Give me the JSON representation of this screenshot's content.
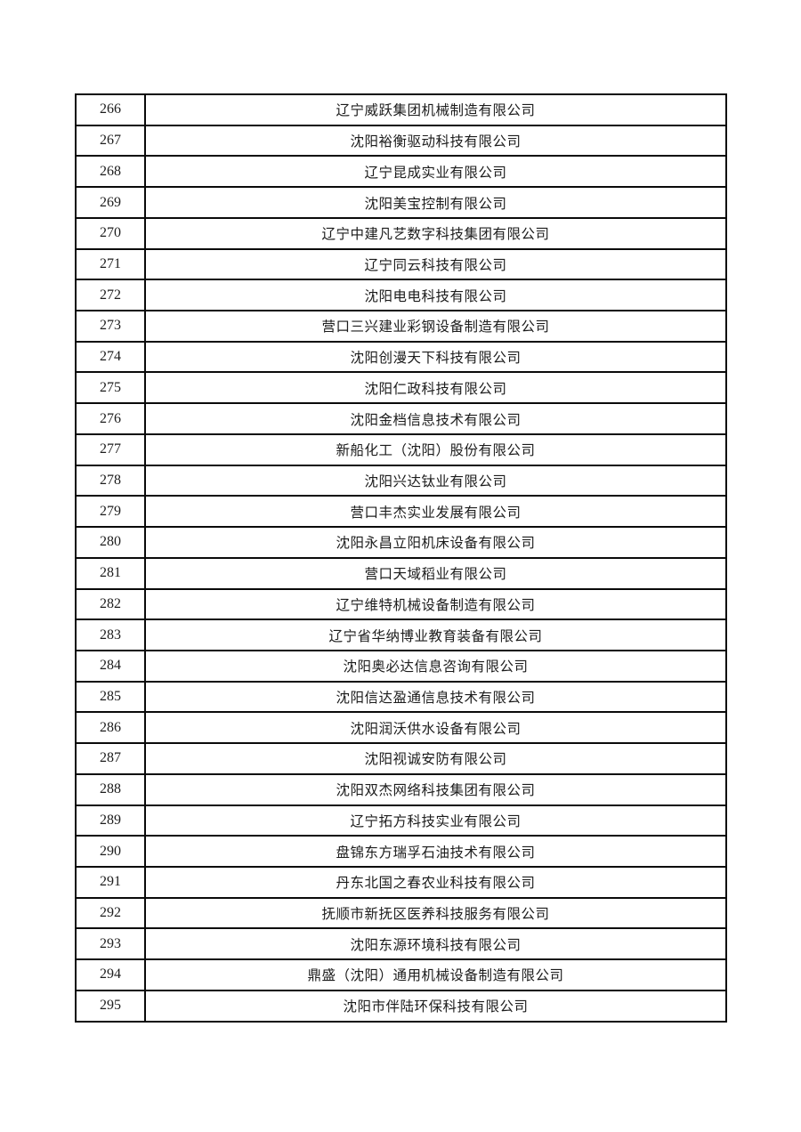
{
  "document": {
    "kind": "company-list-page",
    "page_background": "#ffffff",
    "table_border_color": "#0a0a0a",
    "text_color": "#1c1c1c"
  },
  "table": {
    "rows": [
      {
        "no": "266",
        "name": "辽宁威跃集团机械制造有限公司"
      },
      {
        "no": "267",
        "name": "沈阳裕衡驱动科技有限公司"
      },
      {
        "no": "268",
        "name": "辽宁昆成实业有限公司"
      },
      {
        "no": "269",
        "name": "沈阳美宝控制有限公司"
      },
      {
        "no": "270",
        "name": "辽宁中建凡艺数字科技集团有限公司"
      },
      {
        "no": "271",
        "name": "辽宁同云科技有限公司"
      },
      {
        "no": "272",
        "name": "沈阳电电科技有限公司"
      },
      {
        "no": "273",
        "name": "营口三兴建业彩钢设备制造有限公司"
      },
      {
        "no": "274",
        "name": "沈阳创漫天下科技有限公司"
      },
      {
        "no": "275",
        "name": "沈阳仁政科技有限公司"
      },
      {
        "no": "276",
        "name": "沈阳金档信息技术有限公司"
      },
      {
        "no": "277",
        "name": "新船化工（沈阳）股份有限公司"
      },
      {
        "no": "278",
        "name": "沈阳兴达钛业有限公司"
      },
      {
        "no": "279",
        "name": "营口丰杰实业发展有限公司"
      },
      {
        "no": "280",
        "name": "沈阳永昌立阳机床设备有限公司"
      },
      {
        "no": "281",
        "name": "营口天域稻业有限公司"
      },
      {
        "no": "282",
        "name": "辽宁维特机械设备制造有限公司"
      },
      {
        "no": "283",
        "name": "辽宁省华纳博业教育装备有限公司"
      },
      {
        "no": "284",
        "name": "沈阳奥必达信息咨询有限公司"
      },
      {
        "no": "285",
        "name": "沈阳信达盈通信息技术有限公司"
      },
      {
        "no": "286",
        "name": "沈阳润沃供水设备有限公司"
      },
      {
        "no": "287",
        "name": "沈阳视诚安防有限公司"
      },
      {
        "no": "288",
        "name": "沈阳双杰网络科技集团有限公司"
      },
      {
        "no": "289",
        "name": "辽宁拓方科技实业有限公司"
      },
      {
        "no": "290",
        "name": "盘锦东方瑞孚石油技术有限公司"
      },
      {
        "no": "291",
        "name": "丹东北国之春农业科技有限公司"
      },
      {
        "no": "292",
        "name": "抚顺市新抚区医养科技服务有限公司"
      },
      {
        "no": "293",
        "name": "沈阳东源环境科技有限公司"
      },
      {
        "no": "294",
        "name": "鼎盛（沈阳）通用机械设备制造有限公司"
      },
      {
        "no": "295",
        "name": "沈阳市伴陆环保科技有限公司"
      }
    ]
  }
}
